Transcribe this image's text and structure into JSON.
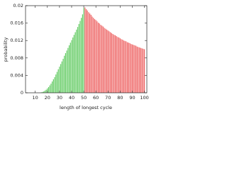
{
  "chart_data": {
    "type": "bar",
    "xlabel": "length of longest cycle",
    "ylabel": "probability",
    "xlim": [
      2,
      102
    ],
    "ylim": [
      0,
      0.02
    ],
    "xticks": [
      10,
      20,
      30,
      40,
      50,
      60,
      70,
      80,
      90,
      100
    ],
    "yticks": [
      0,
      0.004,
      0.008,
      0.012,
      0.016,
      0.02
    ],
    "series": [
      {
        "color": "#66cc66",
        "x": [
          15,
          16,
          17,
          18,
          19,
          20,
          21,
          22,
          23,
          24,
          25,
          26,
          27,
          28,
          29,
          30,
          31,
          32,
          33,
          34,
          35,
          36,
          37,
          38,
          39,
          40,
          41,
          42,
          43,
          44,
          45,
          46,
          47,
          48,
          49,
          50
        ],
        "values": [
          0.0001,
          0.0002,
          0.0003,
          0.0005,
          0.0007,
          0.001,
          0.0013,
          0.0017,
          0.0021,
          0.0026,
          0.0031,
          0.0036,
          0.0042,
          0.0048,
          0.0054,
          0.006,
          0.0066,
          0.0072,
          0.0078,
          0.0085,
          0.0091,
          0.0097,
          0.0103,
          0.0109,
          0.0115,
          0.0121,
          0.0127,
          0.0133,
          0.0139,
          0.0145,
          0.0151,
          0.0158,
          0.0165,
          0.0172,
          0.018,
          0.0195
        ]
      },
      {
        "color": "#ee6666",
        "x": [
          51,
          52,
          53,
          54,
          55,
          56,
          57,
          58,
          59,
          60,
          61,
          62,
          63,
          64,
          65,
          66,
          67,
          68,
          69,
          70,
          71,
          72,
          73,
          74,
          75,
          76,
          77,
          78,
          79,
          80,
          81,
          82,
          83,
          84,
          85,
          86,
          87,
          88,
          89,
          90,
          91,
          92,
          93,
          94,
          95,
          96,
          97,
          98,
          99,
          100
        ],
        "values": [
          0.0196,
          0.0192,
          0.0189,
          0.0185,
          0.0182,
          0.0179,
          0.0175,
          0.0172,
          0.0169,
          0.0167,
          0.0164,
          0.0161,
          0.0159,
          0.0156,
          0.0154,
          0.0152,
          0.0149,
          0.0147,
          0.0145,
          0.0143,
          0.0141,
          0.0139,
          0.0137,
          0.0135,
          0.0133,
          0.0132,
          0.013,
          0.0128,
          0.0127,
          0.0125,
          0.0123,
          0.0122,
          0.012,
          0.0119,
          0.0118,
          0.0116,
          0.0115,
          0.0114,
          0.0112,
          0.0111,
          0.011,
          0.0109,
          0.0108,
          0.0106,
          0.0105,
          0.0104,
          0.0103,
          0.0102,
          0.0101,
          0.01
        ]
      }
    ]
  }
}
